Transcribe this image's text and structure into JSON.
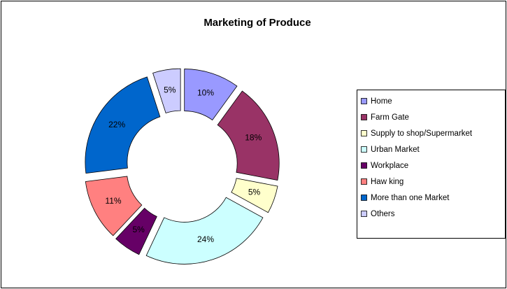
{
  "chart_data": {
    "type": "pie",
    "donut": true,
    "exploded": true,
    "title": "Marketing of Produce",
    "categories": [
      "Home",
      "Farm Gate",
      "Supply to shop/Supermarket",
      "Urban Market",
      "Workplace",
      "Haw king",
      "More than one Market",
      "Others"
    ],
    "values": [
      10,
      18,
      5,
      24,
      5,
      11,
      22,
      5
    ],
    "value_labels": [
      "10%",
      "18%",
      "5%",
      "24%",
      "5%",
      "11%",
      "22%",
      "5%"
    ],
    "colors": [
      "#9999ff",
      "#993366",
      "#ffffcc",
      "#ccffff",
      "#660066",
      "#ff8080",
      "#0066cc",
      "#ccccff"
    ],
    "legend": "right"
  }
}
